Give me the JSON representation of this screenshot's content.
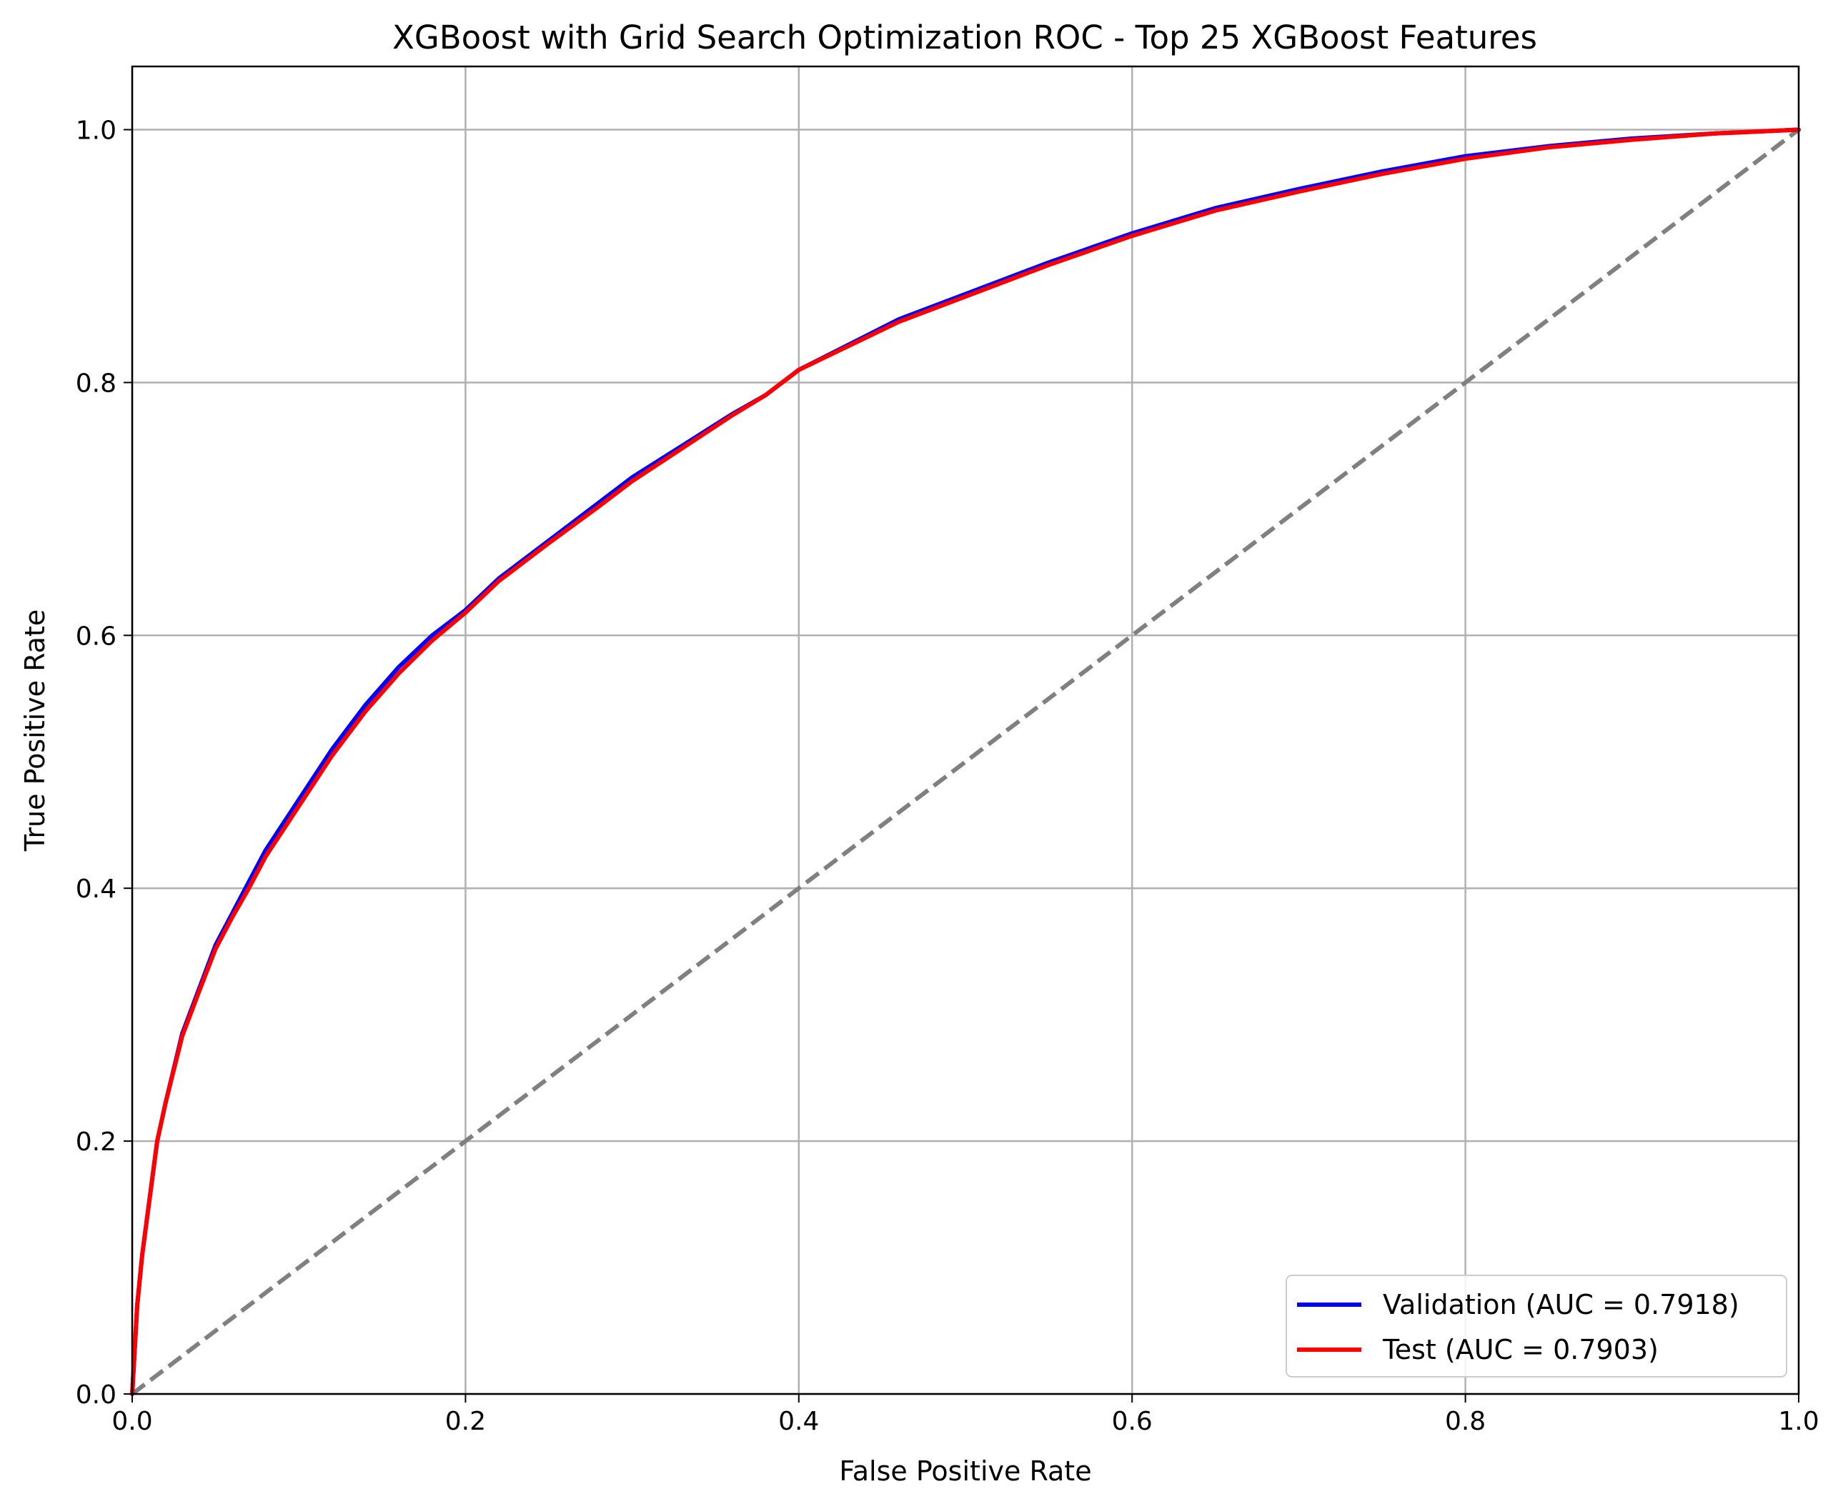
{
  "chart_data": {
    "type": "line",
    "title": "XGBoost with Grid Search Optimization ROC - Top 25 XGBoost Features",
    "xlabel": "False Positive Rate",
    "ylabel": "True Positive Rate",
    "xlim": [
      0.0,
      1.0
    ],
    "ylim": [
      0.0,
      1.05
    ],
    "xticks": [
      "0.0",
      "0.2",
      "0.4",
      "0.6",
      "0.8",
      "1.0"
    ],
    "yticks": [
      "0.0",
      "0.2",
      "0.4",
      "0.6",
      "0.8",
      "1.0"
    ],
    "grid": true,
    "legend_position": "lower-right",
    "series": [
      {
        "name": "Validation (AUC = 0.7918)",
        "color": "#0000ff",
        "x": [
          0.0,
          0.003,
          0.006,
          0.01,
          0.015,
          0.02,
          0.03,
          0.04,
          0.05,
          0.06,
          0.07,
          0.08,
          0.09,
          0.1,
          0.12,
          0.14,
          0.16,
          0.18,
          0.2,
          0.22,
          0.25,
          0.28,
          0.3,
          0.33,
          0.36,
          0.38,
          0.4,
          0.43,
          0.46,
          0.5,
          0.55,
          0.6,
          0.65,
          0.7,
          0.75,
          0.8,
          0.85,
          0.9,
          0.95,
          1.0
        ],
        "y": [
          0.0,
          0.07,
          0.11,
          0.15,
          0.2,
          0.23,
          0.285,
          0.32,
          0.355,
          0.38,
          0.405,
          0.43,
          0.45,
          0.47,
          0.51,
          0.545,
          0.575,
          0.6,
          0.62,
          0.645,
          0.675,
          0.705,
          0.725,
          0.75,
          0.775,
          0.79,
          0.81,
          0.83,
          0.85,
          0.87,
          0.895,
          0.918,
          0.938,
          0.953,
          0.967,
          0.979,
          0.987,
          0.993,
          0.997,
          1.0
        ]
      },
      {
        "name": "Test (AUC = 0.7903)",
        "color": "#ff0000",
        "x": [
          0.0,
          0.003,
          0.006,
          0.01,
          0.015,
          0.02,
          0.03,
          0.04,
          0.05,
          0.06,
          0.07,
          0.08,
          0.09,
          0.1,
          0.12,
          0.14,
          0.16,
          0.18,
          0.2,
          0.22,
          0.25,
          0.28,
          0.3,
          0.33,
          0.36,
          0.38,
          0.4,
          0.43,
          0.46,
          0.5,
          0.55,
          0.6,
          0.65,
          0.7,
          0.75,
          0.8,
          0.85,
          0.9,
          0.95,
          1.0
        ],
        "y": [
          0.0,
          0.07,
          0.11,
          0.15,
          0.2,
          0.23,
          0.283,
          0.318,
          0.352,
          0.377,
          0.4,
          0.425,
          0.445,
          0.465,
          0.505,
          0.54,
          0.57,
          0.596,
          0.618,
          0.643,
          0.673,
          0.702,
          0.722,
          0.748,
          0.774,
          0.79,
          0.81,
          0.829,
          0.848,
          0.868,
          0.893,
          0.916,
          0.936,
          0.951,
          0.965,
          0.977,
          0.986,
          0.992,
          0.997,
          1.0
        ]
      }
    ],
    "reference_line": {
      "x": [
        0.0,
        1.0
      ],
      "y": [
        0.0,
        1.0
      ],
      "color": "#808080",
      "style": "dashed"
    }
  }
}
